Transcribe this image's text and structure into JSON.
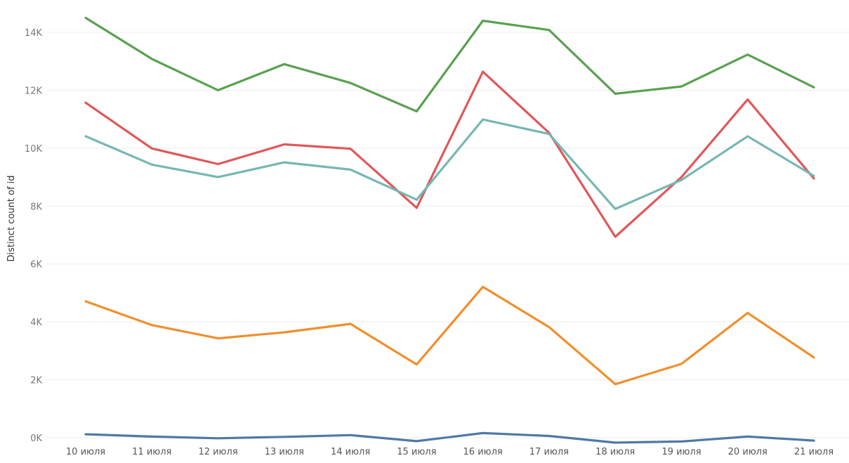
{
  "chart_data": {
    "type": "line",
    "title": "",
    "xlabel": "",
    "ylabel": "Distinct count of id",
    "categories": [
      "10 июля",
      "11 июля",
      "12 июля",
      "13 июля",
      "14 июля",
      "15 июля",
      "16 июля",
      "17 июля",
      "18 июля",
      "19 июля",
      "20 июля",
      "21 июля"
    ],
    "ylim": [
      -300,
      15000
    ],
    "yticks": [
      0,
      2000,
      4000,
      6000,
      8000,
      10000,
      12000,
      14000
    ],
    "ytick_labels": [
      "0K",
      "2K",
      "4K",
      "6K",
      "8K",
      "10K",
      "12K",
      "14K"
    ],
    "grid": true,
    "legend": "none",
    "series": [
      {
        "color": "#59a14f",
        "values": [
          14500,
          13080,
          12000,
          12900,
          12250,
          11270,
          14400,
          14080,
          11880,
          12130,
          13230,
          12100
        ]
      },
      {
        "color": "#e15759",
        "values": [
          11570,
          9990,
          9450,
          10130,
          9980,
          7940,
          12640,
          10530,
          6940,
          9000,
          11680,
          8950
        ]
      },
      {
        "color": "#76b7b2",
        "values": [
          10410,
          9430,
          9000,
          9510,
          9260,
          8220,
          10990,
          10490,
          7900,
          8900,
          10410,
          9040
        ]
      },
      {
        "color": "#f28e2b",
        "values": [
          4710,
          3890,
          3430,
          3640,
          3930,
          2530,
          5210,
          3820,
          1850,
          2550,
          4310,
          2770
        ]
      },
      {
        "color": "#4e79a7",
        "values": [
          120,
          40,
          -20,
          30,
          90,
          -120,
          160,
          60,
          -170,
          -130,
          40,
          -100
        ]
      }
    ]
  }
}
